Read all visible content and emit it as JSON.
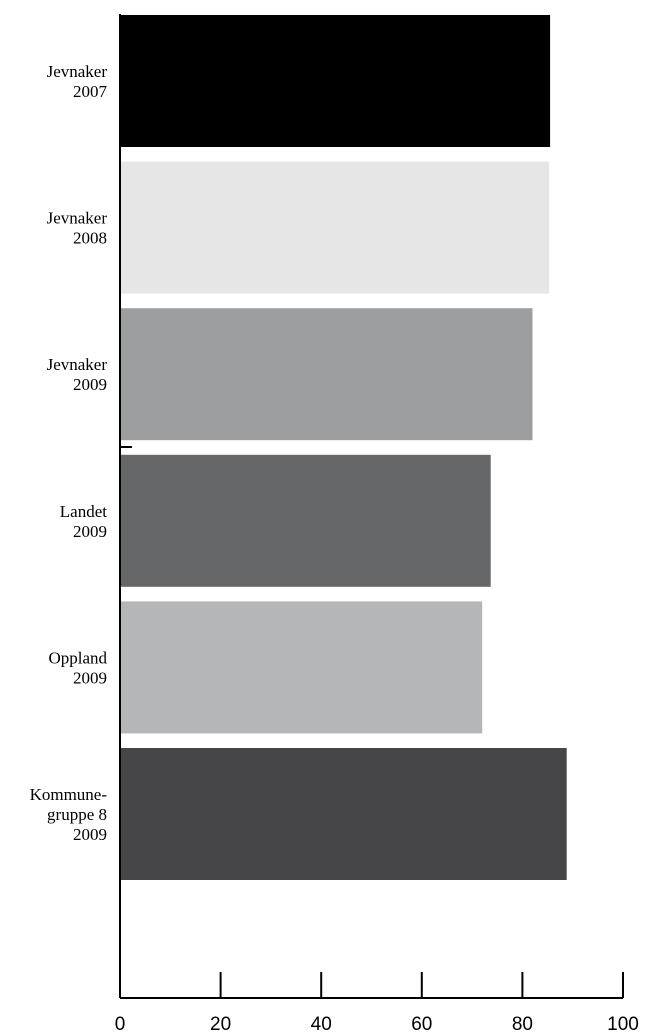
{
  "chart_data": {
    "type": "bar",
    "orientation": "horizontal",
    "title": "",
    "xlabel": "",
    "ylabel": "",
    "xlim": [
      0,
      100
    ],
    "x_ticks": [
      0,
      20,
      40,
      60,
      80,
      100
    ],
    "grid": false,
    "legend": "none",
    "categories": [
      [
        "Jevnaker",
        "2007"
      ],
      [
        "Jevnaker",
        "2008"
      ],
      [
        "Jevnaker",
        "2009"
      ],
      [
        "Landet",
        "2009"
      ],
      [
        "Oppland",
        "2009"
      ],
      [
        "Kommune-",
        "gruppe 8",
        "2009"
      ]
    ],
    "values": [
      85.5,
      85.3,
      82,
      73.7,
      72,
      88.8
    ],
    "colors": [
      "#000000",
      "#e6e6e6",
      "#9d9e9f",
      "#666769",
      "#b5b6b7",
      "#464648"
    ]
  }
}
